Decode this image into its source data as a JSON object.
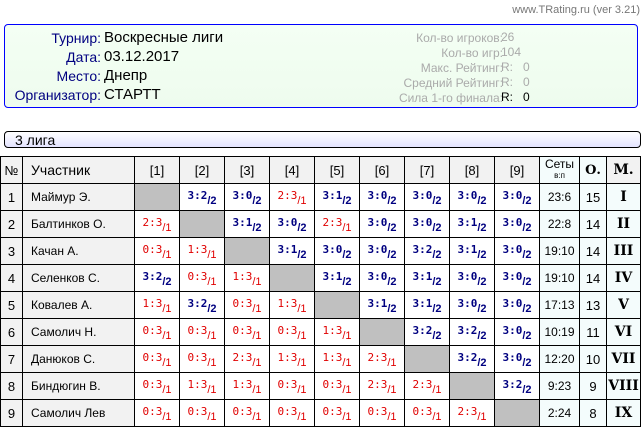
{
  "site": "www.TRating.ru (ver 3.21)",
  "info": {
    "rows": [
      {
        "label": "Турнир:",
        "value": "Воскресные лиги"
      },
      {
        "label": "Дата:",
        "value": "03.12.2017"
      },
      {
        "label": "Место:",
        "value": "Днепр"
      },
      {
        "label": "Организатор:",
        "value": "СТАРТТ"
      }
    ],
    "stats": [
      {
        "label": "Кол-во игроков:",
        "value": "26"
      },
      {
        "label": "Кол-во игр:",
        "value": "104"
      },
      {
        "label": "Макс. Рейтинг:",
        "value": "R:   0"
      },
      {
        "label": "Средний Рейтинг:",
        "value": "R:   0"
      },
      {
        "label": "Сила 1-го финала:",
        "value": "R:   0"
      }
    ]
  },
  "league": "3 лига",
  "table": {
    "headers": {
      "num": "№",
      "name": "Участник",
      "cols": [
        "[1]",
        "[2]",
        "[3]",
        "[4]",
        "[5]",
        "[6]",
        "[7]",
        "[8]",
        "[9]"
      ],
      "sets": "Сеты",
      "sets_sub": "в:п",
      "points": "О.",
      "place": "М."
    },
    "colors": {
      "win": "#000080",
      "loss": "#e00000",
      "self": "#c0c0c0"
    },
    "rows": [
      {
        "n": "1",
        "name": "Маймур Э.",
        "results": [
          "",
          "3:2",
          "3:0",
          "2:3",
          "3:1",
          "3:0",
          "3:0",
          "3:0",
          "3:0"
        ],
        "sets": "23:6",
        "points": "15",
        "place": "I"
      },
      {
        "n": "2",
        "name": "Балтинков О.",
        "results": [
          "2:3",
          "",
          "3:1",
          "3:0",
          "2:3",
          "3:0",
          "3:0",
          "3:1",
          "3:0"
        ],
        "sets": "22:8",
        "points": "14",
        "place": "II"
      },
      {
        "n": "3",
        "name": "Качан А.",
        "results": [
          "0:3",
          "1:3",
          "",
          "3:1",
          "3:0",
          "3:0",
          "3:2",
          "3:1",
          "3:0"
        ],
        "sets": "19:10",
        "points": "14",
        "place": "III"
      },
      {
        "n": "4",
        "name": "Селенков С.",
        "results": [
          "3:2",
          "0:3",
          "1:3",
          "",
          "3:1",
          "3:0",
          "3:1",
          "3:0",
          "3:0"
        ],
        "sets": "19:10",
        "points": "14",
        "place": "IV"
      },
      {
        "n": "5",
        "name": "Ковалев А.",
        "results": [
          "1:3",
          "3:2",
          "0:3",
          "1:3",
          "",
          "3:1",
          "3:1",
          "3:0",
          "3:0"
        ],
        "sets": "17:13",
        "points": "13",
        "place": "V"
      },
      {
        "n": "6",
        "name": "Самолич Н.",
        "results": [
          "0:3",
          "0:3",
          "0:3",
          "0:3",
          "1:3",
          "",
          "3:2",
          "3:2",
          "3:0"
        ],
        "sets": "10:19",
        "points": "11",
        "place": "VI"
      },
      {
        "n": "7",
        "name": "Данюков С.",
        "results": [
          "0:3",
          "0:3",
          "2:3",
          "1:3",
          "1:3",
          "2:3",
          "",
          "3:2",
          "3:0"
        ],
        "sets": "12:20",
        "points": "10",
        "place": "VII"
      },
      {
        "n": "8",
        "name": "Биндюгин В.",
        "results": [
          "0:3",
          "1:3",
          "1:3",
          "0:3",
          "0:3",
          "2:3",
          "2:3",
          "",
          "3:2"
        ],
        "sets": "9:23",
        "points": "9",
        "place": "VIII"
      },
      {
        "n": "9",
        "name": "Самолич Лев",
        "results": [
          "0:3",
          "0:3",
          "0:3",
          "0:3",
          "0:3",
          "0:3",
          "0:3",
          "2:3",
          ""
        ],
        "sets": "2:24",
        "points": "8",
        "place": "IX"
      }
    ]
  }
}
